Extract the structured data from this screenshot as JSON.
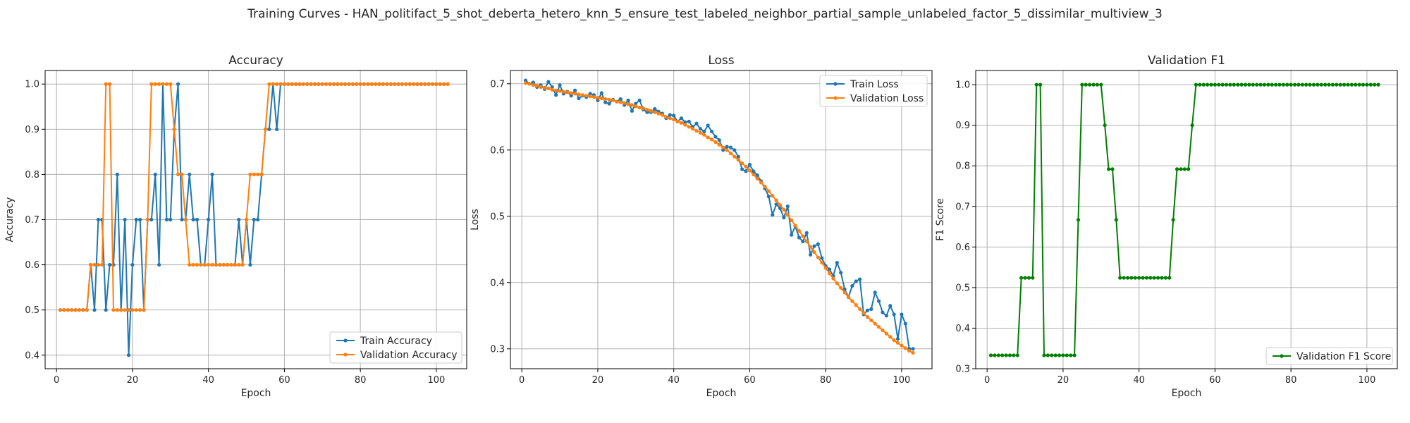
{
  "suptitle": "Training Curves - HAN_politifact_5_shot_deberta_hetero_knn_5_ensure_test_labeled_neighbor_partial_sample_unlabeled_factor_5_dissimilar_multiview_3",
  "colors": {
    "blue": "#1f77b4",
    "orange": "#ff7f0e",
    "green": "#008000",
    "grid": "#b0b0b0"
  },
  "chart_data": [
    {
      "type": "line",
      "title": "Accuracy",
      "xlabel": "Epoch",
      "ylabel": "Accuracy",
      "xlim": [
        -3,
        108
      ],
      "ylim": [
        0.37,
        1.03
      ],
      "xticks": [
        0,
        20,
        40,
        60,
        80,
        100
      ],
      "yticks": [
        0.4,
        0.5,
        0.6,
        0.7,
        0.8,
        0.9,
        1.0
      ],
      "grid": true,
      "legend_position": "lower-right",
      "series": [
        {
          "name": "Train Accuracy",
          "color": "#1f77b4",
          "x_start": 1,
          "values": [
            0.5,
            0.5,
            0.5,
            0.5,
            0.5,
            0.5,
            0.5,
            0.5,
            0.6,
            0.5,
            0.7,
            0.7,
            0.5,
            0.6,
            0.6,
            0.8,
            0.5,
            0.7,
            0.4,
            0.6,
            0.7,
            0.7,
            0.5,
            0.7,
            0.7,
            0.8,
            0.6,
            1.0,
            0.7,
            0.7,
            0.9,
            1.0,
            0.7,
            0.7,
            0.8,
            0.7,
            0.7,
            0.6,
            0.6,
            0.7,
            0.8,
            0.6,
            0.6,
            0.6,
            0.6,
            0.6,
            0.6,
            0.7,
            0.6,
            0.7,
            0.6,
            0.7,
            0.7,
            0.8,
            0.9,
            0.9,
            1.0,
            0.9,
            1.0,
            1.0,
            1.0,
            1.0,
            1.0,
            1.0,
            1.0,
            1.0,
            1.0,
            1.0,
            1.0,
            1.0,
            1.0,
            1.0,
            1.0,
            1.0,
            1.0,
            1.0,
            1.0,
            1.0,
            1.0,
            1.0,
            1.0,
            1.0,
            1.0,
            1.0,
            1.0,
            1.0,
            1.0,
            1.0,
            1.0,
            1.0,
            1.0,
            1.0,
            1.0,
            1.0,
            1.0,
            1.0,
            1.0,
            1.0,
            1.0,
            1.0,
            1.0,
            1.0,
            1.0
          ]
        },
        {
          "name": "Validation Accuracy",
          "color": "#ff7f0e",
          "x_start": 1,
          "values": [
            0.5,
            0.5,
            0.5,
            0.5,
            0.5,
            0.5,
            0.5,
            0.5,
            0.6,
            0.6,
            0.6,
            0.6,
            1.0,
            1.0,
            0.5,
            0.5,
            0.5,
            0.5,
            0.5,
            0.5,
            0.5,
            0.5,
            0.5,
            0.7,
            1.0,
            1.0,
            1.0,
            1.0,
            1.0,
            1.0,
            0.9,
            0.8,
            0.8,
            0.7,
            0.6,
            0.6,
            0.6,
            0.6,
            0.6,
            0.6,
            0.6,
            0.6,
            0.6,
            0.6,
            0.6,
            0.6,
            0.6,
            0.6,
            0.6,
            0.7,
            0.8,
            0.8,
            0.8,
            0.8,
            0.9,
            1.0,
            1.0,
            1.0,
            1.0,
            1.0,
            1.0,
            1.0,
            1.0,
            1.0,
            1.0,
            1.0,
            1.0,
            1.0,
            1.0,
            1.0,
            1.0,
            1.0,
            1.0,
            1.0,
            1.0,
            1.0,
            1.0,
            1.0,
            1.0,
            1.0,
            1.0,
            1.0,
            1.0,
            1.0,
            1.0,
            1.0,
            1.0,
            1.0,
            1.0,
            1.0,
            1.0,
            1.0,
            1.0,
            1.0,
            1.0,
            1.0,
            1.0,
            1.0,
            1.0,
            1.0,
            1.0,
            1.0,
            1.0
          ]
        }
      ]
    },
    {
      "type": "line",
      "title": "Loss",
      "xlabel": "Epoch",
      "ylabel": "Loss",
      "xlim": [
        -3,
        108
      ],
      "ylim": [
        0.27,
        0.72
      ],
      "xticks": [
        0,
        20,
        40,
        60,
        80,
        100
      ],
      "yticks": [
        0.3,
        0.4,
        0.5,
        0.6,
        0.7
      ],
      "grid": true,
      "legend_position": "upper-right",
      "series": [
        {
          "name": "Train Loss",
          "color": "#1f77b4",
          "x_start": 1,
          "values": [
            0.705,
            0.7,
            0.702,
            0.695,
            0.698,
            0.692,
            0.703,
            0.695,
            0.683,
            0.698,
            0.685,
            0.688,
            0.682,
            0.69,
            0.678,
            0.682,
            0.68,
            0.685,
            0.683,
            0.675,
            0.686,
            0.672,
            0.67,
            0.676,
            0.673,
            0.677,
            0.668,
            0.675,
            0.659,
            0.67,
            0.675,
            0.661,
            0.657,
            0.657,
            0.662,
            0.658,
            0.655,
            0.648,
            0.653,
            0.652,
            0.643,
            0.648,
            0.642,
            0.643,
            0.635,
            0.64,
            0.632,
            0.628,
            0.637,
            0.628,
            0.62,
            0.615,
            0.6,
            0.605,
            0.604,
            0.6,
            0.59,
            0.571,
            0.568,
            0.578,
            0.568,
            0.562,
            0.553,
            0.542,
            0.53,
            0.502,
            0.518,
            0.512,
            0.498,
            0.515,
            0.472,
            0.485,
            0.468,
            0.462,
            0.475,
            0.442,
            0.455,
            0.458,
            0.437,
            0.425,
            0.42,
            0.41,
            0.43,
            0.415,
            0.39,
            0.378,
            0.395,
            0.402,
            0.405,
            0.352,
            0.358,
            0.36,
            0.385,
            0.372,
            0.355,
            0.35,
            0.365,
            0.352,
            0.315,
            0.352,
            0.338,
            0.3,
            0.3
          ]
        },
        {
          "name": "Validation Loss",
          "color": "#ff7f0e",
          "x_start": 1,
          "values": [
            0.701,
            0.7,
            0.698,
            0.697,
            0.695,
            0.694,
            0.693,
            0.691,
            0.69,
            0.689,
            0.688,
            0.687,
            0.686,
            0.685,
            0.684,
            0.683,
            0.682,
            0.681,
            0.68,
            0.679,
            0.678,
            0.677,
            0.676,
            0.675,
            0.673,
            0.672,
            0.671,
            0.669,
            0.668,
            0.666,
            0.664,
            0.663,
            0.661,
            0.659,
            0.657,
            0.655,
            0.653,
            0.65,
            0.648,
            0.646,
            0.643,
            0.641,
            0.638,
            0.635,
            0.632,
            0.629,
            0.626,
            0.623,
            0.619,
            0.616,
            0.612,
            0.608,
            0.604,
            0.6,
            0.595,
            0.59,
            0.585,
            0.58,
            0.575,
            0.569,
            0.563,
            0.557,
            0.551,
            0.545,
            0.538,
            0.531,
            0.524,
            0.517,
            0.51,
            0.502,
            0.494,
            0.486,
            0.478,
            0.47,
            0.462,
            0.454,
            0.446,
            0.438,
            0.43,
            0.422,
            0.414,
            0.406,
            0.399,
            0.392,
            0.385,
            0.378,
            0.372,
            0.366,
            0.36,
            0.354,
            0.348,
            0.343,
            0.338,
            0.333,
            0.328,
            0.323,
            0.318,
            0.313,
            0.309,
            0.305,
            0.301,
            0.297,
            0.294
          ]
        }
      ]
    },
    {
      "type": "line",
      "title": "Validation F1",
      "xlabel": "Epoch",
      "ylabel": "F1 Score",
      "xlim": [
        -3,
        108
      ],
      "ylim": [
        0.3,
        1.035
      ],
      "xticks": [
        0,
        20,
        40,
        60,
        80,
        100
      ],
      "yticks": [
        0.3,
        0.4,
        0.5,
        0.6,
        0.7,
        0.8,
        0.9,
        1.0
      ],
      "grid": true,
      "legend_position": "lower-right",
      "series": [
        {
          "name": "Validation F1 Score",
          "color": "#008000",
          "x_start": 1,
          "values": [
            0.333,
            0.333,
            0.333,
            0.333,
            0.333,
            0.333,
            0.333,
            0.333,
            0.524,
            0.524,
            0.524,
            0.524,
            1.0,
            1.0,
            0.333,
            0.333,
            0.333,
            0.333,
            0.333,
            0.333,
            0.333,
            0.333,
            0.333,
            0.667,
            1.0,
            1.0,
            1.0,
            1.0,
            1.0,
            1.0,
            0.9,
            0.792,
            0.792,
            0.667,
            0.524,
            0.524,
            0.524,
            0.524,
            0.524,
            0.524,
            0.524,
            0.524,
            0.524,
            0.524,
            0.524,
            0.524,
            0.524,
            0.524,
            0.667,
            0.792,
            0.792,
            0.792,
            0.792,
            0.9,
            1.0,
            1.0,
            1.0,
            1.0,
            1.0,
            1.0,
            1.0,
            1.0,
            1.0,
            1.0,
            1.0,
            1.0,
            1.0,
            1.0,
            1.0,
            1.0,
            1.0,
            1.0,
            1.0,
            1.0,
            1.0,
            1.0,
            1.0,
            1.0,
            1.0,
            1.0,
            1.0,
            1.0,
            1.0,
            1.0,
            1.0,
            1.0,
            1.0,
            1.0,
            1.0,
            1.0,
            1.0,
            1.0,
            1.0,
            1.0,
            1.0,
            1.0,
            1.0,
            1.0,
            1.0,
            1.0,
            1.0,
            1.0,
            1.0
          ]
        }
      ]
    }
  ]
}
